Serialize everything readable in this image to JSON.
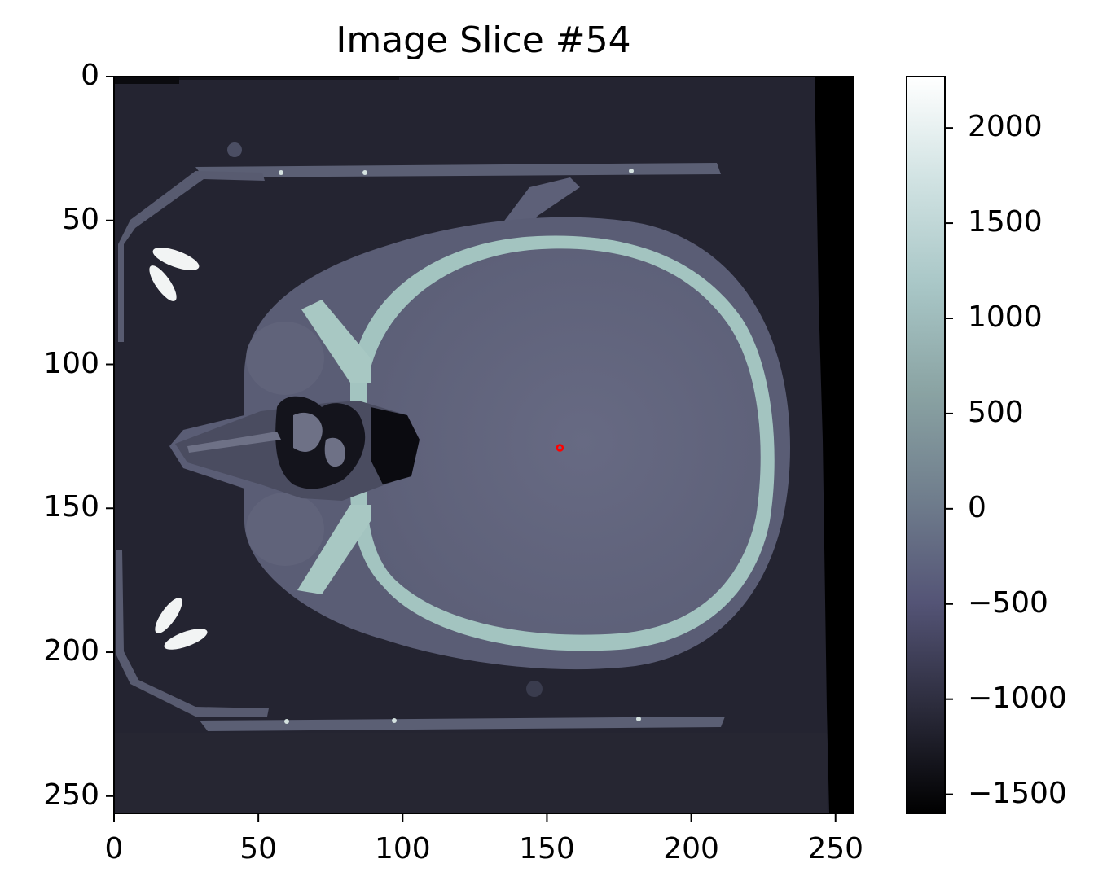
{
  "title": "Image Slice #54",
  "image": {
    "x_ticks": [
      "0",
      "50",
      "100",
      "150",
      "200",
      "250"
    ],
    "y_ticks": [
      "0",
      "50",
      "100",
      "150",
      "200",
      "250"
    ],
    "x_tick_values": [
      0,
      50,
      100,
      150,
      200,
      250
    ],
    "y_tick_values": [
      0,
      50,
      100,
      150,
      200,
      250
    ],
    "x_range": [
      0,
      256
    ],
    "y_range": [
      0,
      256
    ],
    "marker": {
      "x": 154.5,
      "y": 129,
      "color": "#ff0000"
    }
  },
  "colorbar": {
    "ticks": [
      "2000",
      "1500",
      "1000",
      "500",
      "0",
      "−500",
      "−1000",
      "−1500"
    ],
    "tick_values": [
      2000,
      1500,
      1000,
      500,
      0,
      -500,
      -1000,
      -1500
    ],
    "range": [
      -1600,
      2270
    ],
    "colors": [
      "#000000",
      "#2b2b3b",
      "#545476",
      "#707e8d",
      "#8aa3a3",
      "#a8c6c6",
      "#d0e2e2",
      "#ffffff"
    ]
  }
}
